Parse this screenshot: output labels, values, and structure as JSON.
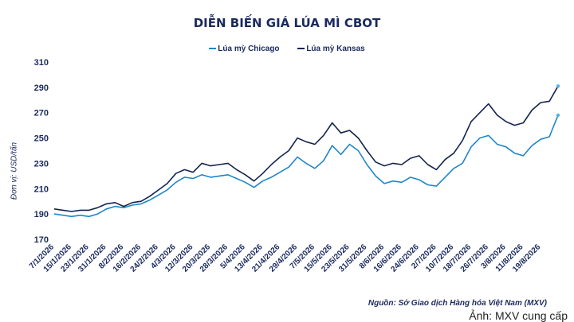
{
  "chart_data": {
    "type": "line",
    "title": "DIỄN BIẾN GIÁ LÚA MÌ CBOT",
    "ylabel": "Đơn vị: USD/tấn",
    "xlabel": "",
    "ylim": [
      170,
      310
    ],
    "yticks": [
      170,
      190,
      210,
      230,
      250,
      270,
      290,
      310
    ],
    "grid": false,
    "legend_position": "top-center",
    "x_tick_labels": [
      "7/1/2026",
      "15/1/2026",
      "23/1/2026",
      "31/1/2026",
      "8/2/2026",
      "16/2/2026",
      "24/2/2026",
      "4/3/2026",
      "12/3/2026",
      "20/3/2026",
      "28/3/2026",
      "5/4/2026",
      "13/4/2026",
      "21/4/2026",
      "29/4/2026",
      "7/5/2026",
      "15/5/2026",
      "23/5/2026",
      "31/5/2026",
      "8/6/2026",
      "16/6/2026",
      "24/6/2026",
      "2/7/2026",
      "10/7/2026",
      "18/7/2026",
      "26/7/2026",
      "3/8/2026",
      "11/8/2026",
      "19/8/2026"
    ],
    "x": [
      "7/1/2026",
      "11/1/2026",
      "15/1/2026",
      "19/1/2026",
      "23/1/2026",
      "27/1/2026",
      "31/1/2026",
      "4/2/2026",
      "8/2/2026",
      "12/2/2026",
      "16/2/2026",
      "20/2/2026",
      "24/2/2026",
      "28/2/2026",
      "4/3/2026",
      "8/3/2026",
      "12/3/2026",
      "16/3/2026",
      "20/3/2026",
      "24/3/2026",
      "28/3/2026",
      "1/4/2026",
      "5/4/2026",
      "9/4/2026",
      "13/4/2026",
      "17/4/2026",
      "21/4/2026",
      "25/4/2026",
      "29/4/2026",
      "3/5/2026",
      "7/5/2026",
      "11/5/2026",
      "15/5/2026",
      "19/5/2026",
      "23/5/2026",
      "27/5/2026",
      "31/5/2026",
      "4/6/2026",
      "8/6/2026",
      "12/6/2026",
      "16/6/2026",
      "20/6/2026",
      "24/6/2026",
      "28/6/2026",
      "2/7/2026",
      "6/7/2026",
      "10/7/2026",
      "14/7/2026",
      "18/7/2026",
      "22/7/2026",
      "26/7/2026",
      "30/7/2026",
      "3/8/2026",
      "7/8/2026",
      "11/8/2026",
      "15/8/2026",
      "19/8/2026",
      "23/8/2026",
      "27/8/2026"
    ],
    "series": [
      {
        "name": "Lúa mỳ Chicago",
        "color": "#1f86c8",
        "values": [
          190,
          189,
          188,
          189,
          188,
          190,
          194,
          196,
          195,
          197,
          198,
          201,
          205,
          209,
          215,
          219,
          218,
          221,
          219,
          220,
          221,
          218,
          215,
          211,
          216,
          219,
          223,
          227,
          235,
          230,
          226,
          232,
          244,
          237,
          245,
          240,
          229,
          220,
          214,
          216,
          215,
          219,
          217,
          213,
          212,
          219,
          226,
          230,
          243,
          250,
          252,
          245,
          243,
          238,
          236,
          244,
          249,
          251,
          268
        ]
      },
      {
        "name": "Lúa mỳ Kansas",
        "color": "#14234f",
        "values": [
          194,
          193,
          192,
          193,
          193,
          195,
          198,
          199,
          196,
          199,
          200,
          204,
          209,
          214,
          222,
          225,
          223,
          230,
          228,
          229,
          230,
          225,
          221,
          216,
          222,
          229,
          235,
          240,
          250,
          247,
          245,
          252,
          262,
          254,
          256,
          250,
          240,
          231,
          228,
          230,
          229,
          234,
          236,
          229,
          225,
          233,
          238,
          248,
          263,
          270,
          277,
          268,
          263,
          260,
          262,
          272,
          278,
          279,
          291
        ]
      }
    ]
  },
  "legend_items": [
    "Lúa mỳ Chicago",
    "Lúa mỳ Kansas"
  ],
  "source": "Nguồn: Sở Giao dịch Hàng hóa Việt Nam (MXV)",
  "credit": "Ảnh: MXV cung cấp"
}
